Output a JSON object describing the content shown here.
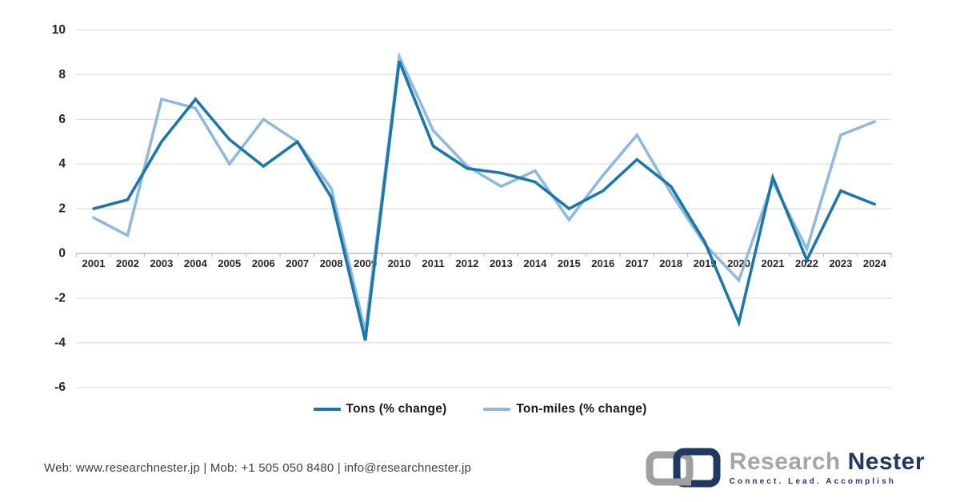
{
  "chart_data": {
    "type": "line",
    "categories": [
      "2001",
      "2002",
      "2003",
      "2004",
      "2005",
      "2006",
      "2007",
      "2008",
      "2009",
      "2010",
      "2011",
      "2012",
      "2013",
      "2014",
      "2015",
      "2016",
      "2017",
      "2018",
      "2019",
      "2020",
      "2021",
      "2022",
      "2023",
      "2024"
    ],
    "series": [
      {
        "name": "Tons (% change)",
        "color": "#1878AE",
        "values": [
          2.0,
          2.4,
          5.0,
          6.9,
          5.1,
          3.9,
          5.0,
          2.5,
          -3.9,
          8.6,
          4.8,
          3.8,
          3.6,
          3.2,
          2.0,
          2.8,
          4.2,
          3.0,
          0.5,
          -3.1,
          3.4,
          -0.3,
          2.8,
          2.2
        ]
      },
      {
        "name": "Ton-miles (% change)",
        "color": "#8FBADF",
        "values": [
          1.6,
          0.8,
          6.9,
          6.5,
          4.0,
          6.0,
          5.0,
          2.9,
          -3.5,
          8.8,
          5.5,
          3.9,
          3.0,
          3.7,
          1.5,
          3.5,
          5.3,
          2.7,
          0.4,
          -1.2,
          3.2,
          0.2,
          5.3,
          5.9
        ]
      }
    ],
    "title": "",
    "xlabel": "",
    "ylabel": "",
    "ylim": [
      -6,
      10
    ],
    "yticks": [
      10,
      8,
      6,
      4,
      2,
      0,
      -2,
      -4,
      -6
    ],
    "grid": true,
    "legend_position": "bottom",
    "grid_color": "#DEDEDE",
    "axis_color": "#BFBFBF"
  },
  "legend": {
    "items": [
      {
        "label": "Tons (% change)",
        "color": "#1878AE"
      },
      {
        "label": "Ton-miles (% change)",
        "color": "#8FBADF"
      }
    ]
  },
  "footer": {
    "contact": "Web: www.researchnester.jp  | Mob: +1 505 050 8480 | info@researchnester.jp"
  },
  "logo": {
    "brand_first": "Research",
    "brand_second": "Nester",
    "tagline": "Connect. Lead. Accomplish",
    "colors": {
      "gray": "#A6A6A6",
      "navy": "#1F3864"
    }
  }
}
